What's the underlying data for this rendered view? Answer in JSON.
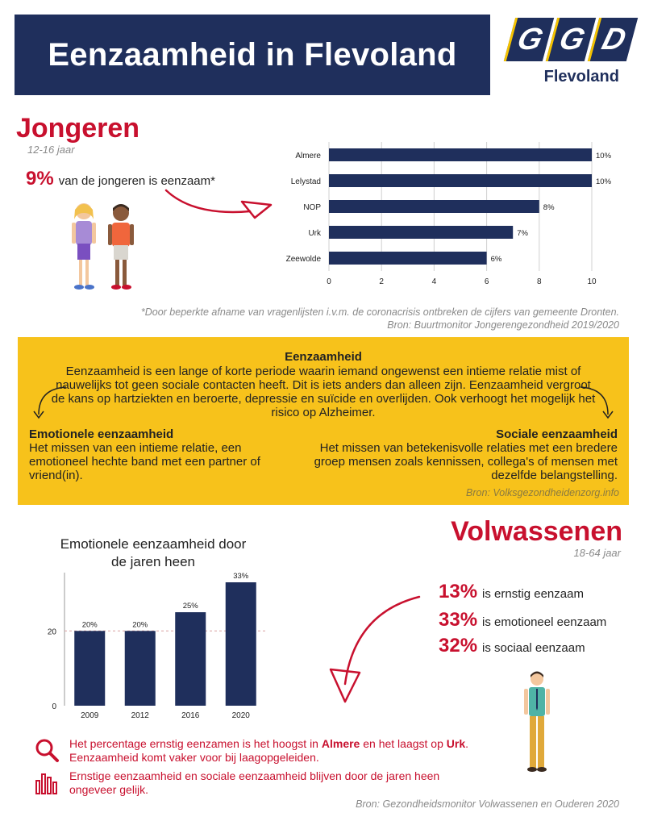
{
  "header": {
    "title": "Eenzaamheid in Flevoland",
    "logo_letters": [
      "G",
      "G",
      "D"
    ],
    "logo_subtitle": "Flevoland"
  },
  "youth": {
    "title": "Jongeren",
    "age": "12-16 jaar",
    "stat_value": "9%",
    "stat_text": "van de jongeren is eenzaam*",
    "footnote": "*Door beperkte afname van vragenlijsten i.v.m. de coronacrisis ontbreken de cijfers van gemeente Dronten.",
    "source": "Bron: Buurtmonitor Jongerengezondheid 2019/2020"
  },
  "info": {
    "title": "Eenzaamheid",
    "body": "Eenzaamheid is een lange of korte periode waarin iemand ongewenst een intieme relatie mist of nauwelijks tot geen sociale contacten heeft. Dit is iets anders dan alleen zijn. Eenzaamheid vergroot de kans op hartziekten en beroerte, depressie en suïcide en overlijden. Ook verhoogt het mogelijk het risico op Alzheimer.",
    "emotional_title": "Emotionele eenzaamheid",
    "emotional_text": "Het missen van een intieme relatie, een emotioneel hechte band met een partner of vriend(in).",
    "social_title": "Sociale eenzaamheid",
    "social_text": "Het missen van betekenisvolle relaties met een bredere groep mensen zoals kennissen, collega's of mensen met dezelfde belangstelling.",
    "source": "Bron: Volksgezondheidenzorg.info"
  },
  "adults": {
    "title": "Volwassenen",
    "age": "18-64 jaar",
    "stats": [
      {
        "value": "13%",
        "text": "is ernstig eenzaam"
      },
      {
        "value": "33%",
        "text": "is emotioneel eenzaam"
      },
      {
        "value": "32%",
        "text": "is sociaal eenzaam"
      }
    ],
    "finding1_a": "Het percentage ernstig eenzamen is het hoogst in ",
    "finding1_b": "Almere",
    "finding1_c": " en het laagst op ",
    "finding1_d": "Urk",
    "finding1_e": ".",
    "finding1_line2": "Eenzaamheid komt vaker voor bij laagopgeleiden.",
    "finding2": "Ernstige eenzaamheid en sociale eenzaamheid blijven door de jaren heen ongeveer gelijk.",
    "source": "Bron: Gezondheidsmonitor Volwassenen en Ouderen 2020"
  },
  "colors": {
    "navy": "#1f2f5c",
    "red": "#c8102e",
    "yellow": "#f7c21b"
  },
  "chart_data": [
    {
      "type": "bar",
      "orientation": "horizontal",
      "categories": [
        "Almere",
        "Lelystad",
        "NOP",
        "Urk",
        "Zeewolde"
      ],
      "values": [
        10,
        10,
        8,
        7,
        6
      ],
      "value_labels": [
        "10%",
        "10%",
        "8%",
        "7%",
        "6%"
      ],
      "xticks": [
        0,
        2,
        4,
        6,
        8,
        10
      ],
      "xlim": [
        0,
        10
      ],
      "grid": "vertical"
    },
    {
      "type": "bar",
      "title_line1": "Emotionele eenzaamheid door",
      "title_line2": "de jaren heen",
      "categories": [
        "2009",
        "2012",
        "2016",
        "2020"
      ],
      "values": [
        20,
        20,
        25,
        33
      ],
      "value_labels": [
        "20%",
        "20%",
        "25%",
        "33%"
      ],
      "yticks": [
        0,
        20
      ],
      "ylim": [
        0,
        33
      ],
      "reference_line": 20
    }
  ]
}
